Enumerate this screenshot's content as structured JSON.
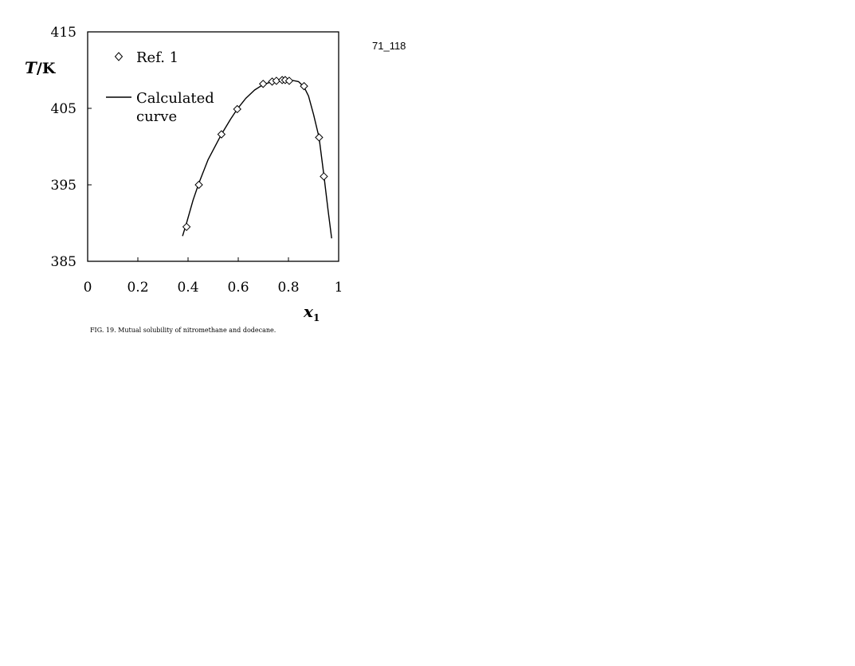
{
  "page_label": "71_118",
  "caption": "FIG. 19. Mutual solubility of nitromethane and dodecane.",
  "chart_data": {
    "type": "scatter",
    "title": "",
    "ylabel": "T",
    "ylabel_unit": "/K",
    "xlabel": "x",
    "xlabel_subscript": "1",
    "xlim": [
      0,
      1
    ],
    "ylim": [
      385,
      415
    ],
    "x_ticks": [
      0,
      0.2,
      0.4,
      0.6,
      0.8,
      1
    ],
    "x_tick_labels": [
      "0",
      "0.2",
      "0.4",
      "0.6",
      "0.8",
      "1"
    ],
    "y_ticks": [
      385,
      395,
      405,
      415
    ],
    "y_tick_labels": [
      "385",
      "395",
      "405",
      "415"
    ],
    "grid": false,
    "legend_position": "top-left",
    "legend": [
      "Ref. 1",
      "Calculated curve"
    ],
    "legend_lines": [
      "Calculated",
      "curve"
    ],
    "series": [
      {
        "name": "Ref. 1",
        "marker": "diamond",
        "points": [
          {
            "x": 0.394,
            "y": 389.5
          },
          {
            "x": 0.443,
            "y": 395.0
          },
          {
            "x": 0.533,
            "y": 401.6
          },
          {
            "x": 0.596,
            "y": 404.9
          },
          {
            "x": 0.699,
            "y": 408.2
          },
          {
            "x": 0.735,
            "y": 408.5
          },
          {
            "x": 0.752,
            "y": 408.6
          },
          {
            "x": 0.775,
            "y": 408.7
          },
          {
            "x": 0.787,
            "y": 408.7
          },
          {
            "x": 0.803,
            "y": 408.6
          },
          {
            "x": 0.862,
            "y": 407.9
          },
          {
            "x": 0.922,
            "y": 401.2
          },
          {
            "x": 0.941,
            "y": 396.1
          }
        ]
      },
      {
        "name": "Calculated curve",
        "type": "line",
        "points": [
          {
            "x": 0.378,
            "y": 388.3
          },
          {
            "x": 0.394,
            "y": 390.0
          },
          {
            "x": 0.42,
            "y": 393.0
          },
          {
            "x": 0.443,
            "y": 395.2
          },
          {
            "x": 0.48,
            "y": 398.3
          },
          {
            "x": 0.533,
            "y": 401.6
          },
          {
            "x": 0.57,
            "y": 403.6
          },
          {
            "x": 0.596,
            "y": 404.9
          },
          {
            "x": 0.63,
            "y": 406.3
          },
          {
            "x": 0.665,
            "y": 407.4
          },
          {
            "x": 0.699,
            "y": 408.1
          },
          {
            "x": 0.735,
            "y": 408.5
          },
          {
            "x": 0.775,
            "y": 408.7
          },
          {
            "x": 0.81,
            "y": 408.7
          },
          {
            "x": 0.84,
            "y": 408.5
          },
          {
            "x": 0.862,
            "y": 407.8
          },
          {
            "x": 0.88,
            "y": 406.6
          },
          {
            "x": 0.9,
            "y": 404.2
          },
          {
            "x": 0.922,
            "y": 401.2
          },
          {
            "x": 0.941,
            "y": 396.3
          },
          {
            "x": 0.958,
            "y": 391.6
          },
          {
            "x": 0.972,
            "y": 388.0
          }
        ]
      }
    ]
  }
}
